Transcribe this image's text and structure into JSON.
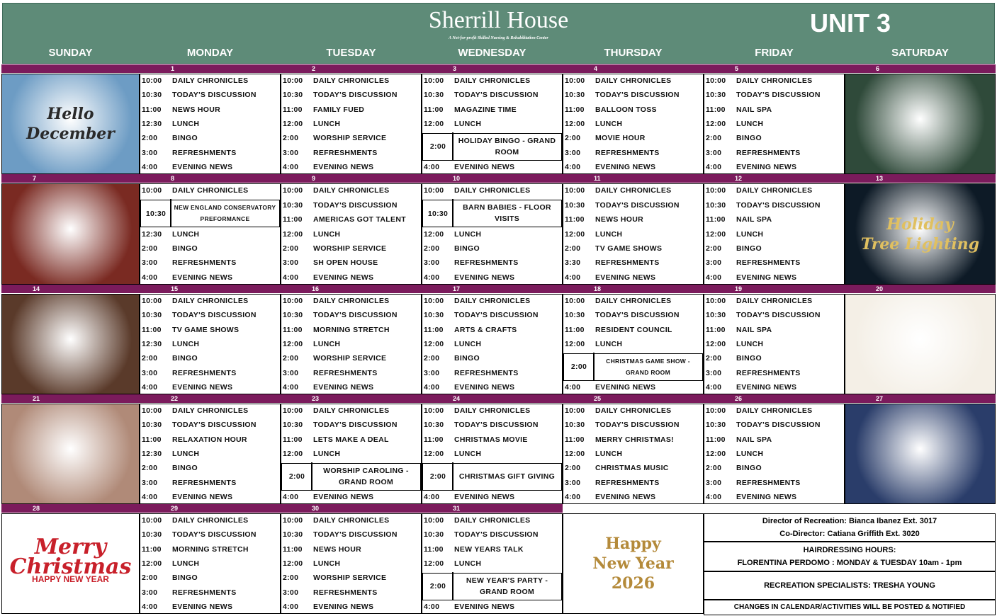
{
  "header": {
    "title": "Sherrill House",
    "subtitle": "A Not-for-profit Skilled Nursing & Rehabilitation Center",
    "unit": "UNIT 3"
  },
  "days": [
    "SUNDAY",
    "MONDAY",
    "TUESDAY",
    "WEDNESDAY",
    "THURSDAY",
    "FRIDAY",
    "SATURDAY"
  ],
  "weeks": [
    {
      "cells": [
        {
          "date": null,
          "image": {
            "color": "#6d9cc4",
            "caption": [
              "Hello",
              "December"
            ]
          }
        },
        {
          "date": "1",
          "events": [
            [
              "10:00",
              "DAILY CHRONICLES"
            ],
            [
              "10:30",
              "TODAY'S DISCUSSION"
            ],
            [
              "11:00",
              "NEWS HOUR"
            ],
            [
              "12:30",
              "LUNCH"
            ],
            [
              "2:00",
              "BINGO"
            ],
            [
              "3:00",
              "REFRESHMENTS"
            ],
            [
              "4:00",
              "EVENING NEWS"
            ]
          ]
        },
        {
          "date": "2",
          "events": [
            [
              "10:00",
              "DAILY CHRONICLES"
            ],
            [
              "10:30",
              "TODAY'S DISCUSSION"
            ],
            [
              "11:00",
              "FAMILY FUED"
            ],
            [
              "12:00",
              "LUNCH"
            ],
            [
              "2:00",
              "WORSHIP SERVICE"
            ],
            [
              "3:00",
              "REFRESHMENTS"
            ],
            [
              "4:00",
              "EVENING NEWS"
            ]
          ]
        },
        {
          "date": "3",
          "events": [
            [
              "10:00",
              "DAILY CHRONICLES"
            ],
            [
              "10:30",
              "TODAY'S DISCUSSION"
            ],
            [
              "11:00",
              "MAGAZINE TIME"
            ],
            [
              "12:00",
              "LUNCH"
            ],
            [
              "2:00",
              "HOLIDAY BINGO - GRAND ROOM",
              true
            ],
            [
              "4:00",
              "EVENING NEWS"
            ]
          ]
        },
        {
          "date": "4",
          "events": [
            [
              "10:00",
              "DAILY CHRONICLES"
            ],
            [
              "10:30",
              "TODAY'S DISCUSSION"
            ],
            [
              "11:00",
              "BALLOON TOSS"
            ],
            [
              "12:00",
              "LUNCH"
            ],
            [
              "2:00",
              "MOVIE HOUR"
            ],
            [
              "3:00",
              "REFRESHMENTS"
            ],
            [
              "4:00",
              "EVENING NEWS"
            ]
          ]
        },
        {
          "date": "5",
          "events": [
            [
              "10:00",
              "DAILY CHRONICLES"
            ],
            [
              "10:30",
              "TODAY'S DISCUSSION"
            ],
            [
              "11:00",
              "NAIL SPA"
            ],
            [
              "12:00",
              "LUNCH"
            ],
            [
              "2:00",
              "BINGO"
            ],
            [
              "3:00",
              "REFRESHMENTS"
            ],
            [
              "4:00",
              "EVENING NEWS"
            ]
          ]
        },
        {
          "date": "6",
          "image": {
            "color": "#2f4a3a",
            "caption": []
          }
        }
      ]
    },
    {
      "cells": [
        {
          "date": "7",
          "image": {
            "color": "#7a2a22",
            "caption": []
          }
        },
        {
          "date": "8",
          "events": [
            [
              "10:00",
              "DAILY CHRONICLES"
            ],
            [
              "10:30",
              "NEW ENGLAND CONSERVATORY PREFORMANCE",
              true
            ],
            [
              "12:30",
              "LUNCH"
            ],
            [
              "2:00",
              "BINGO"
            ],
            [
              "3:00",
              "REFRESHMENTS"
            ],
            [
              "4:00",
              "EVENING NEWS"
            ]
          ]
        },
        {
          "date": "9",
          "events": [
            [
              "10:00",
              "DAILY CHRONICLES"
            ],
            [
              "10:30",
              "TODAY'S DISCUSSION"
            ],
            [
              "11:00",
              "AMERICAS GOT TALENT"
            ],
            [
              "12:00",
              "LUNCH"
            ],
            [
              "2:00",
              "WORSHIP SERVICE"
            ],
            [
              "3:00",
              "SH OPEN HOUSE"
            ],
            [
              "4:00",
              "EVENING NEWS"
            ]
          ]
        },
        {
          "date": "10",
          "events": [
            [
              "10:00",
              "DAILY CHRONICLES"
            ],
            [
              "10:30",
              "BARN BABIES - FLOOR VISITS",
              true
            ],
            [
              "12:00",
              "LUNCH"
            ],
            [
              "2:00",
              "BINGO"
            ],
            [
              "3:00",
              "REFRESHMENTS"
            ],
            [
              "4:00",
              "EVENING NEWS"
            ]
          ]
        },
        {
          "date": "11",
          "events": [
            [
              "10:00",
              "DAILY CHRONICLES"
            ],
            [
              "10:30",
              "TODAY'S DISCUSSION"
            ],
            [
              "11:00",
              "NEWS HOUR"
            ],
            [
              "12:00",
              "LUNCH"
            ],
            [
              "2:00",
              "TV GAME SHOWS"
            ],
            [
              "3:30",
              "REFRESHMENTS"
            ],
            [
              "4:00",
              "EVENING NEWS"
            ]
          ]
        },
        {
          "date": "12",
          "events": [
            [
              "10:00",
              "DAILY CHRONICLES"
            ],
            [
              "10:30",
              "TODAY'S DISCUSSION"
            ],
            [
              "11:00",
              "NAIL SPA"
            ],
            [
              "12:00",
              "LUNCH"
            ],
            [
              "2:00",
              "BINGO"
            ],
            [
              "3:00",
              "REFRESHMENTS"
            ],
            [
              "4:00",
              "EVENING NEWS"
            ]
          ]
        },
        {
          "date": "13",
          "image": {
            "color": "#0d1a26",
            "caption": [
              "Holiday",
              "Tree Lighting"
            ]
          }
        }
      ]
    },
    {
      "cells": [
        {
          "date": "14",
          "image": {
            "color": "#5a3a2a",
            "caption": []
          }
        },
        {
          "date": "15",
          "events": [
            [
              "10:00",
              "DAILY CHRONICLES"
            ],
            [
              "10:30",
              "TODAY'S DISCUSSION"
            ],
            [
              "11:00",
              "TV GAME SHOWS"
            ],
            [
              "12:30",
              "LUNCH"
            ],
            [
              "2:00",
              "BINGO"
            ],
            [
              "3:00",
              "REFRESHMENTS"
            ],
            [
              "4:00",
              "EVENING NEWS"
            ]
          ]
        },
        {
          "date": "16",
          "events": [
            [
              "10:00",
              "DAILY CHRONICLES"
            ],
            [
              "10:30",
              "TODAY'S DISCUSSION"
            ],
            [
              "11:00",
              "MORNING STRETCH"
            ],
            [
              "12:00",
              "LUNCH"
            ],
            [
              "2:00",
              "WORSHIP SERVICE"
            ],
            [
              "3:00",
              "REFRESHMENTS"
            ],
            [
              "4:00",
              "EVENING NEWS"
            ]
          ]
        },
        {
          "date": "17",
          "events": [
            [
              "10:00",
              "DAILY CHRONICLES"
            ],
            [
              "10:30",
              "TODAY'S DISCUSSION"
            ],
            [
              "11:00",
              "ARTS & CRAFTS"
            ],
            [
              "12:00",
              "LUNCH"
            ],
            [
              "2:00",
              "BINGO"
            ],
            [
              "3:00",
              "REFRESHMENTS"
            ],
            [
              "4:00",
              "EVENING NEWS"
            ]
          ]
        },
        {
          "date": "18",
          "events": [
            [
              "10:00",
              "DAILY CHRONICLES"
            ],
            [
              "10:30",
              "TODAY'S DISCUSSION"
            ],
            [
              "11:00",
              "RESIDENT COUNCIL"
            ],
            [
              "12:00",
              "LUNCH"
            ],
            [
              "2:00",
              "CHRISTMAS GAME SHOW - GRAND ROOM",
              true
            ],
            [
              "4:00",
              "EVENING NEWS"
            ]
          ]
        },
        {
          "date": "19",
          "events": [
            [
              "10:00",
              "DAILY CHRONICLES"
            ],
            [
              "10:30",
              "TODAY'S DISCUSSION"
            ],
            [
              "11:00",
              "NAIL SPA"
            ],
            [
              "12:00",
              "LUNCH"
            ],
            [
              "2:00",
              "BINGO"
            ],
            [
              "3:00",
              "REFRESHMENTS"
            ],
            [
              "4:00",
              "EVENING NEWS"
            ]
          ]
        },
        {
          "date": "20",
          "image": {
            "color": "#f4efe6",
            "caption": []
          }
        }
      ]
    },
    {
      "cells": [
        {
          "date": "21",
          "image": {
            "color": "#b08a78",
            "caption": []
          }
        },
        {
          "date": "22",
          "events": [
            [
              "10:00",
              "DAILY CHRONICLES"
            ],
            [
              "10:30",
              "TODAY'S DISCUSSION"
            ],
            [
              "11:00",
              "RELAXATION HOUR"
            ],
            [
              "12:30",
              "LUNCH"
            ],
            [
              "2:00",
              "BINGO"
            ],
            [
              "3:00",
              "REFRESHMENTS"
            ],
            [
              "4:00",
              "EVENING NEWS"
            ]
          ]
        },
        {
          "date": "23",
          "events": [
            [
              "10:00",
              "DAILY CHRONICLES"
            ],
            [
              "10:30",
              "TODAY'S DISCUSSION"
            ],
            [
              "11:00",
              "LETS MAKE A DEAL"
            ],
            [
              "12:00",
              "LUNCH"
            ],
            [
              "2:00",
              "WORSHIP CAROLING - GRAND ROOM",
              true
            ],
            [
              "4:00",
              "EVENING NEWS"
            ]
          ]
        },
        {
          "date": "24",
          "events": [
            [
              "10:00",
              "DAILY CHRONICLES"
            ],
            [
              "10:30",
              "TODAY'S DISCUSSION"
            ],
            [
              "11:00",
              "CHRISTMAS MOVIE"
            ],
            [
              "12:00",
              "LUNCH"
            ],
            [
              "2:00",
              "CHRISTMAS GIFT GIVING",
              true
            ],
            [
              "4:00",
              "EVENING NEWS"
            ]
          ]
        },
        {
          "date": "25",
          "events": [
            [
              "10:00",
              "DAILY CHRONICLES"
            ],
            [
              "10:30",
              "TODAY'S DISCUSSION"
            ],
            [
              "11:00",
              "MERRY CHRISTMAS!"
            ],
            [
              "12:00",
              "LUNCH"
            ],
            [
              "2:00",
              "CHRISTMAS MUSIC"
            ],
            [
              "3:00",
              "REFRESHMENTS"
            ],
            [
              "4:00",
              "EVENING NEWS"
            ]
          ]
        },
        {
          "date": "26",
          "events": [
            [
              "10:00",
              "DAILY CHRONICLES"
            ],
            [
              "10:30",
              "TODAY'S DISCUSSION"
            ],
            [
              "11:00",
              "NAIL SPA"
            ],
            [
              "12:00",
              "LUNCH"
            ],
            [
              "2:00",
              "BINGO"
            ],
            [
              "3:00",
              "REFRESHMENTS"
            ],
            [
              "4:00",
              "EVENING NEWS"
            ]
          ]
        },
        {
          "date": "27",
          "image": {
            "color": "#2a3d6a",
            "caption": []
          }
        }
      ]
    },
    {
      "cells": [
        {
          "date": "28",
          "image": {
            "color": "#ffffff",
            "caption": [
              "Merry",
              "Christmas",
              "HAPPY NEW YEAR"
            ]
          }
        },
        {
          "date": "29",
          "events": [
            [
              "10:00",
              "DAILY CHRONICLES"
            ],
            [
              "10:30",
              "TODAY'S DISCUSSION"
            ],
            [
              "11:00",
              "MORNING STRETCH"
            ],
            [
              "12:00",
              "LUNCH"
            ],
            [
              "2:00",
              "BINGO"
            ],
            [
              "3:00",
              "REFRESHMENTS"
            ],
            [
              "4:00",
              "EVENING NEWS"
            ]
          ]
        },
        {
          "date": "30",
          "events": [
            [
              "10:00",
              "DAILY CHRONICLES"
            ],
            [
              "10:30",
              "TODAY'S DISCUSSION"
            ],
            [
              "11:00",
              "NEWS HOUR"
            ],
            [
              "12:00",
              "LUNCH"
            ],
            [
              "2:00",
              "WORSHIP SERVICE"
            ],
            [
              "3:00",
              "REFRESHMENTS"
            ],
            [
              "4:00",
              "EVENING NEWS"
            ]
          ]
        },
        {
          "date": "31",
          "events": [
            [
              "10:00",
              "DAILY CHRONICLES"
            ],
            [
              "10:30",
              "TODAY'S DISCUSSION"
            ],
            [
              "11:00",
              "NEW YEARS TALK"
            ],
            [
              "12:00",
              "LUNCH"
            ],
            [
              "2:00",
              "NEW YEAR'S PARTY - GRAND ROOM",
              true
            ],
            [
              "4:00",
              "EVENING NEWS"
            ]
          ]
        },
        {
          "date": null,
          "image": {
            "color": "#ffffff",
            "caption": [
              "Happy",
              "New Year",
              "2026"
            ]
          }
        }
      ]
    }
  ],
  "notes": [
    [
      "Director of Recreation: Bianca Ibanez Ext. 3017",
      "Co-Director: Catiana Griffith Ext. 3020"
    ],
    [
      "HAIRDRESSING HOURS:",
      "FLORENTINA PERDOMO : MONDAY & TUESDAY 10am - 1pm"
    ],
    [
      "RECREATION SPECIALISTS: TRESHA YOUNG"
    ],
    [
      "CHANGES IN CALENDAR/ACTIVITIES WILL BE POSTED & NOTIFIED"
    ]
  ]
}
